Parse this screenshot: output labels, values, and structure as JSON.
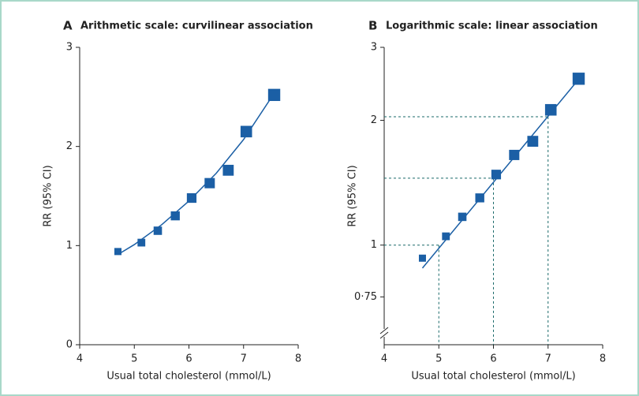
{
  "chart_data": [
    {
      "type": "scatter",
      "panel_label": "A",
      "title": "Arithmetic scale: curvilinear association",
      "xlabel": "Usual total cholesterol (mmol/L)",
      "ylabel": "RR (95% CI)",
      "xlim": [
        4,
        8
      ],
      "xticks": [
        4,
        5,
        6,
        7,
        8
      ],
      "ylim": [
        0,
        3
      ],
      "yticks": [
        0,
        1,
        2,
        3
      ],
      "yscale": "linear",
      "color": "#1b5fa5",
      "x": [
        4.7,
        5.13,
        5.43,
        5.75,
        6.05,
        6.38,
        6.72,
        7.05,
        7.56
      ],
      "values": [
        0.94,
        1.03,
        1.15,
        1.3,
        1.48,
        1.63,
        1.76,
        2.15,
        2.52
      ],
      "fit": {
        "x": [
          4.7,
          5,
          5.5,
          6,
          6.5,
          7,
          7.6
        ],
        "values": [
          0.91,
          1.01,
          1.21,
          1.45,
          1.73,
          2.07,
          2.57
        ]
      }
    },
    {
      "type": "scatter",
      "panel_label": "B",
      "title": "Logarithmic scale: linear association",
      "xlabel": "Usual total cholesterol (mmol/L)",
      "ylabel": "RR (95% CI)",
      "xlim": [
        4,
        8
      ],
      "xticks": [
        4,
        5,
        6,
        7,
        8
      ],
      "ylim": [
        0.575,
        3
      ],
      "yticks": [
        {
          "value": 0.75,
          "label": "0·75"
        },
        1,
        2,
        3
      ],
      "yscale": "log",
      "color": "#1b5fa5",
      "x": [
        4.7,
        5.13,
        5.43,
        5.75,
        6.05,
        6.38,
        6.72,
        7.05,
        7.56
      ],
      "values": [
        0.93,
        1.05,
        1.17,
        1.3,
        1.48,
        1.65,
        1.78,
        2.12,
        2.52
      ],
      "fit": {
        "x": [
          4.7,
          7.6
        ],
        "values": [
          0.88,
          2.55
        ]
      },
      "reference_lines": [
        {
          "x": 5,
          "y": 1
        },
        {
          "x": 6,
          "y": 1.45
        },
        {
          "x": 7,
          "y": 2.04
        }
      ]
    }
  ]
}
